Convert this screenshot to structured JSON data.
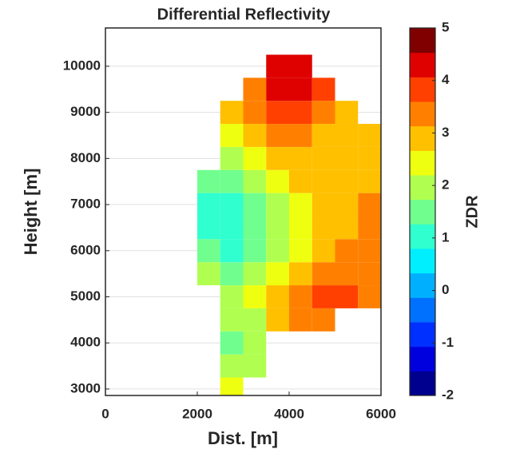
{
  "chart_data": {
    "type": "heatmap",
    "title": "Differential Reflectivity",
    "xlabel": "Dist. [m]",
    "ylabel": "Height [m]",
    "colorbar_label": "ZDR",
    "xlim": [
      0,
      6000
    ],
    "xticks": [
      0,
      2000,
      4000,
      6000
    ],
    "ylim": [
      2860,
      10830
    ],
    "yticks": [
      3000,
      4000,
      5000,
      6000,
      7000,
      8000,
      9000,
      10000
    ],
    "grid": true,
    "clim": [
      -2,
      5
    ],
    "cticks": [
      -2,
      -1,
      0,
      1,
      2,
      3,
      4,
      5
    ],
    "colormap": [
      "#00008f",
      "#0000df",
      "#0030ff",
      "#0070ff",
      "#00b0ff",
      "#00efff",
      "#30ffcf",
      "#70ff8f",
      "#b0ff50",
      "#efff10",
      "#ffc000",
      "#ff8000",
      "#ff4000",
      "#df0000",
      "#800000"
    ],
    "x": [
      250,
      750,
      1250,
      1750,
      2250,
      2750,
      3250,
      3750,
      4250,
      4750,
      5250,
      5750
    ],
    "y": [
      3000,
      3500,
      4000,
      4500,
      5000,
      5500,
      6000,
      6500,
      7000,
      7500,
      8000,
      8500,
      9000,
      9500,
      10000,
      10500
    ],
    "z": [
      [
        null,
        null,
        null,
        null,
        null,
        2.5,
        null,
        null,
        null,
        null,
        null,
        null
      ],
      [
        null,
        null,
        null,
        null,
        null,
        2,
        2,
        null,
        null,
        null,
        null,
        null
      ],
      [
        null,
        null,
        null,
        null,
        null,
        1.5,
        2,
        null,
        null,
        null,
        null,
        null
      ],
      [
        null,
        null,
        null,
        null,
        null,
        2,
        2,
        3,
        3.5,
        3.5,
        null,
        null
      ],
      [
        null,
        null,
        null,
        null,
        null,
        2,
        2.5,
        3,
        3.5,
        4,
        4,
        3.5
      ],
      [
        null,
        null,
        null,
        null,
        2,
        1.5,
        2,
        2.5,
        3,
        3.5,
        3.5,
        3.5
      ],
      [
        null,
        null,
        null,
        null,
        1.5,
        1,
        1.5,
        2,
        2.5,
        3,
        3.5,
        3.5
      ],
      [
        null,
        null,
        null,
        null,
        1,
        1,
        1.5,
        2,
        2.5,
        3,
        3,
        3.5
      ],
      [
        null,
        null,
        null,
        null,
        1,
        1,
        1.5,
        2,
        2.5,
        3,
        3,
        3.5
      ],
      [
        null,
        null,
        null,
        null,
        1.5,
        1.5,
        2,
        2.5,
        3,
        3,
        3,
        3
      ],
      [
        null,
        null,
        null,
        null,
        null,
        2,
        2.5,
        3,
        3,
        3,
        3,
        3
      ],
      [
        null,
        null,
        null,
        null,
        null,
        2.5,
        3,
        3.5,
        3.5,
        3,
        3,
        3
      ],
      [
        null,
        null,
        null,
        null,
        null,
        3,
        3.5,
        4,
        4,
        3.5,
        3,
        null
      ],
      [
        null,
        null,
        null,
        null,
        null,
        null,
        3.5,
        4.5,
        4.5,
        4,
        null,
        null
      ],
      [
        null,
        null,
        null,
        null,
        null,
        null,
        null,
        4.5,
        4.5,
        null,
        null,
        null
      ],
      [
        null,
        null,
        null,
        null,
        null,
        null,
        null,
        null,
        null,
        null,
        null,
        null
      ]
    ]
  }
}
